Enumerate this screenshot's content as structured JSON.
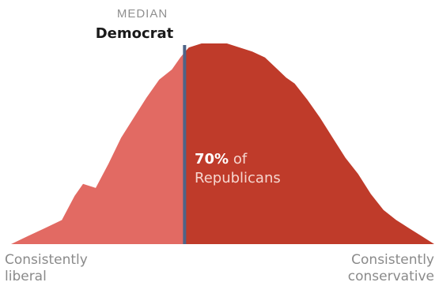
{
  "chart_data": {
    "type": "area",
    "title": "",
    "xlabel": "",
    "ylabel": "",
    "x_range": [
      0,
      100
    ],
    "y_range": [
      0,
      100
    ],
    "grid": false,
    "legend": "none",
    "series": [
      {
        "x": [
          0,
          4,
          8,
          12,
          15,
          17,
          20,
          23,
          26,
          29,
          32,
          35,
          38,
          40,
          42,
          45,
          48,
          51,
          54,
          57,
          60,
          63,
          65,
          67,
          70,
          73,
          76,
          79,
          82,
          85,
          88,
          91,
          94,
          97,
          100
        ],
        "y": [
          0,
          4,
          8,
          12,
          24,
          30,
          28,
          40,
          53,
          63,
          73,
          82,
          87,
          93,
          98,
          100,
          100,
          100,
          98,
          96,
          93,
          87,
          83,
          80,
          72,
          63,
          53,
          43,
          35,
          25,
          17,
          12,
          8,
          4,
          0
        ]
      }
    ],
    "split_x": 41,
    "colors": {
      "left_fill": "#e26a63",
      "right_fill": "#bf3b2a",
      "median_line": "#4e6487"
    },
    "annotations": {
      "median_kicker": "MEDIAN",
      "median_group": "Democrat",
      "share_pct": "70%",
      "share_of": " of",
      "share_group": "Republicans",
      "left_end_1": "Consistently",
      "left_end_2": "liberal",
      "right_end_1": "Consistently",
      "right_end_2": "conservative"
    }
  }
}
